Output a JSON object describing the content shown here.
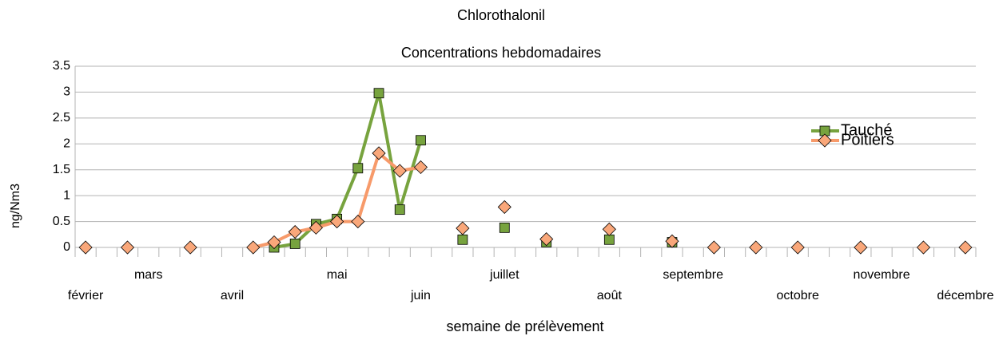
{
  "chart_data": {
    "type": "line",
    "title": "Chlorothalonil",
    "subtitle": "Concentrations hebdomadaires",
    "x_label": "semaine de prélèvement",
    "y_label": "ng/Nm3",
    "categories": [
      "février",
      null,
      null,
      "mars",
      null,
      null,
      null,
      "avril",
      null,
      null,
      null,
      null,
      "mai",
      null,
      null,
      null,
      "juin",
      null,
      null,
      null,
      "juillet",
      null,
      null,
      null,
      null,
      "août",
      null,
      null,
      null,
      "septembre",
      null,
      null,
      null,
      null,
      "octobre",
      null,
      null,
      null,
      "novembre",
      null,
      null,
      null,
      "décembre"
    ],
    "series": [
      {
        "name": "Tauché",
        "color": "#77a33e",
        "marker": "square",
        "values": [
          null,
          null,
          null,
          null,
          null,
          null,
          null,
          null,
          null,
          0,
          0.07,
          0.45,
          0.55,
          1.53,
          2.98,
          0.73,
          2.07,
          null,
          0.15,
          null,
          0.38,
          null,
          0.1,
          null,
          null,
          0.15,
          null,
          null,
          0.1,
          null,
          null,
          null,
          null,
          null,
          null,
          null,
          null,
          null,
          null,
          null,
          null,
          null,
          null
        ]
      },
      {
        "name": "Poitiers",
        "color": "#f79a6a",
        "marker": "diamond",
        "values": [
          0,
          null,
          0,
          null,
          null,
          0,
          null,
          null,
          0,
          0.1,
          0.3,
          0.38,
          0.5,
          0.5,
          1.82,
          1.48,
          1.55,
          null,
          0.37,
          null,
          0.78,
          null,
          0.16,
          null,
          null,
          0.35,
          null,
          null,
          0.12,
          null,
          0,
          null,
          0,
          null,
          0,
          null,
          null,
          0,
          null,
          null,
          0,
          null,
          0
        ]
      }
    ],
    "ylim": [
      0,
      3.5
    ],
    "yticks": [
      0,
      0.5,
      1,
      1.5,
      2,
      2.5,
      3,
      3.5
    ],
    "grid": true,
    "legend": "upper right"
  }
}
